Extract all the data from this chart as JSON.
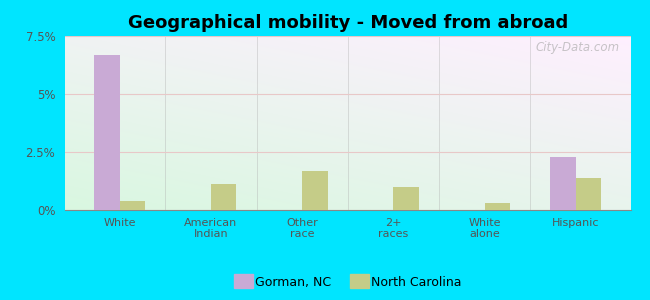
{
  "title": "Geographical mobility - Moved from abroad",
  "categories": [
    "White",
    "American\nIndian",
    "Other\nrace",
    "2+\nraces",
    "White\nalone",
    "Hispanic"
  ],
  "gorman_values": [
    6.7,
    0.0,
    0.0,
    0.0,
    0.0,
    2.3
  ],
  "nc_values": [
    0.4,
    1.1,
    1.7,
    1.0,
    0.3,
    1.4
  ],
  "gorman_color": "#c9aad5",
  "nc_color": "#c5cc88",
  "ylim": [
    0,
    7.5
  ],
  "yticks": [
    0,
    2.5,
    5.0,
    7.5
  ],
  "ytick_labels": [
    "0%",
    "2.5%",
    "5%",
    "7.5%"
  ],
  "outer_background": "#00e5ff",
  "bar_width": 0.28,
  "legend_gorman": "Gorman, NC",
  "legend_nc": "North Carolina",
  "watermark": "City-Data.com",
  "title_fontsize": 13,
  "tick_fontsize": 8,
  "ytick_fontsize": 8.5
}
